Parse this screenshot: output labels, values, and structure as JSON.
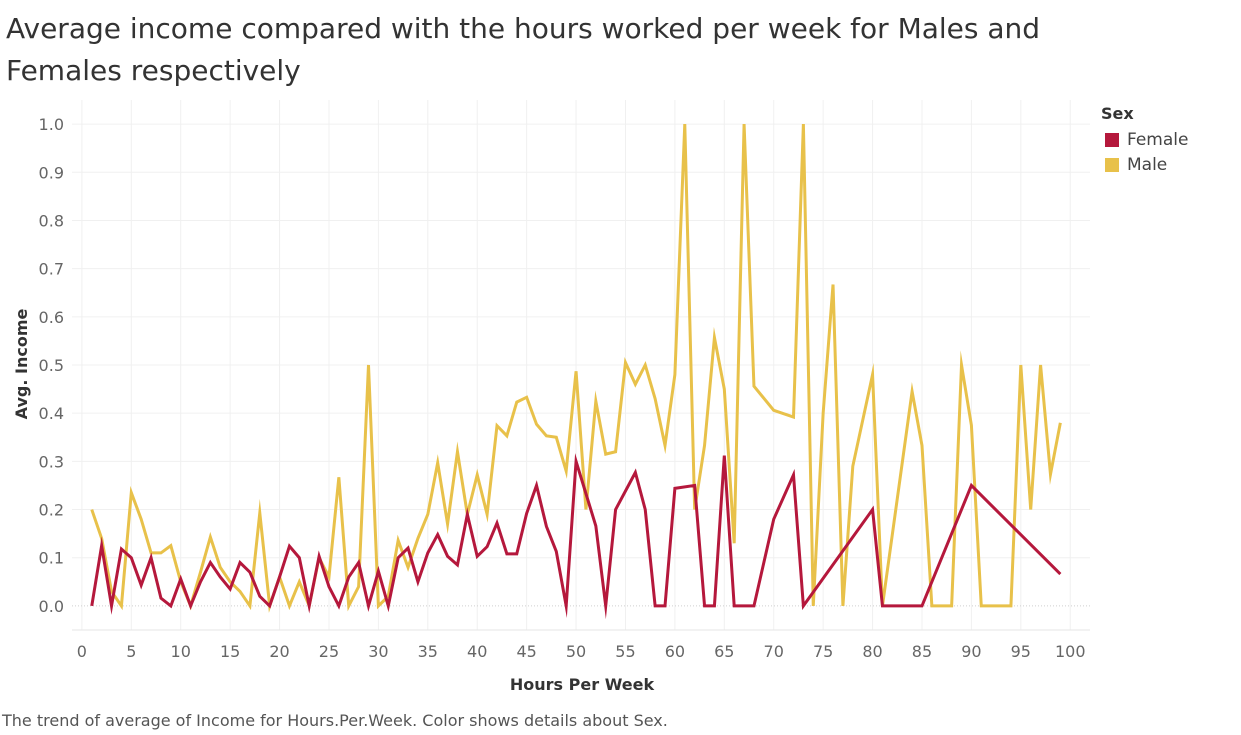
{
  "title": "Average income compared with the hours worked per week for Males and Females respectively",
  "caption": "The trend of average of Income for Hours.Per.Week.  Color shows details about Sex.",
  "legend": {
    "title": "Sex",
    "items": [
      {
        "label": "Female",
        "color": "#b5183c"
      },
      {
        "label": "Male",
        "color": "#e8c14a"
      }
    ]
  },
  "chart_data": {
    "type": "line",
    "title": "Average income compared with the hours worked per week for Males and Females respectively",
    "xlabel": "Hours Per Week",
    "ylabel": "Avg. Income",
    "xlim": [
      -1,
      102
    ],
    "ylim": [
      -0.05,
      1.05
    ],
    "x_ticks": [
      0,
      5,
      10,
      15,
      20,
      25,
      30,
      35,
      40,
      45,
      50,
      55,
      60,
      65,
      70,
      75,
      80,
      85,
      90,
      95,
      100
    ],
    "y_ticks": [
      0.0,
      0.1,
      0.2,
      0.3,
      0.4,
      0.5,
      0.6,
      0.7,
      0.8,
      0.9,
      1.0
    ],
    "grid": true,
    "legend_position": "top-right",
    "series": [
      {
        "name": "Male",
        "color": "#e8c14a",
        "points": [
          [
            1,
            0.2
          ],
          [
            2,
            0.14
          ],
          [
            3,
            0.03
          ],
          [
            4,
            0.0
          ],
          [
            5,
            0.235
          ],
          [
            6,
            0.18
          ],
          [
            7,
            0.11
          ],
          [
            8,
            0.11
          ],
          [
            9,
            0.125
          ],
          [
            10,
            0.05
          ],
          [
            11,
            0.0
          ],
          [
            12,
            0.07
          ],
          [
            13,
            0.143
          ],
          [
            14,
            0.08
          ],
          [
            15,
            0.05
          ],
          [
            16,
            0.03
          ],
          [
            17,
            0.0
          ],
          [
            18,
            0.193
          ],
          [
            19,
            0.0
          ],
          [
            20,
            0.06
          ],
          [
            21,
            0.0
          ],
          [
            22,
            0.05
          ],
          [
            23,
            0.0
          ],
          [
            24,
            0.1
          ],
          [
            25,
            0.06
          ],
          [
            26,
            0.267
          ],
          [
            27,
            0.0
          ],
          [
            28,
            0.04
          ],
          [
            29,
            0.5
          ],
          [
            30,
            0.0
          ],
          [
            31,
            0.02
          ],
          [
            32,
            0.136
          ],
          [
            33,
            0.08
          ],
          [
            34,
            0.14
          ],
          [
            35,
            0.19
          ],
          [
            36,
            0.297
          ],
          [
            37,
            0.17
          ],
          [
            38,
            0.32
          ],
          [
            39,
            0.19
          ],
          [
            40,
            0.272
          ],
          [
            41,
            0.19
          ],
          [
            42,
            0.374
          ],
          [
            43,
            0.353
          ],
          [
            44,
            0.423
          ],
          [
            45,
            0.433
          ],
          [
            46,
            0.377
          ],
          [
            47,
            0.353
          ],
          [
            48,
            0.35
          ],
          [
            49,
            0.28
          ],
          [
            50,
            0.487
          ],
          [
            51,
            0.2
          ],
          [
            52,
            0.425
          ],
          [
            53,
            0.315
          ],
          [
            54,
            0.32
          ],
          [
            55,
            0.505
          ],
          [
            56,
            0.46
          ],
          [
            57,
            0.5
          ],
          [
            58,
            0.43
          ],
          [
            59,
            0.333
          ],
          [
            60,
            0.48
          ],
          [
            61,
            1.0
          ],
          [
            62,
            0.2
          ],
          [
            63,
            0.333
          ],
          [
            64,
            0.557
          ],
          [
            65,
            0.45
          ],
          [
            66,
            0.13
          ],
          [
            67,
            1.0
          ],
          [
            68,
            0.456
          ],
          [
            70,
            0.406
          ],
          [
            72,
            0.392
          ],
          [
            73,
            1.0
          ],
          [
            74,
            0.0
          ],
          [
            75,
            0.4
          ],
          [
            76,
            0.667
          ],
          [
            77,
            0.0
          ],
          [
            78,
            0.29
          ],
          [
            80,
            0.48
          ],
          [
            81,
            0.0
          ],
          [
            84,
            0.445
          ],
          [
            85,
            0.333
          ],
          [
            86,
            0.0
          ],
          [
            88,
            0.0
          ],
          [
            89,
            0.5
          ],
          [
            90,
            0.375
          ],
          [
            91,
            0.0
          ],
          [
            94,
            0.0
          ],
          [
            95,
            0.5
          ],
          [
            96,
            0.2
          ],
          [
            97,
            0.5
          ],
          [
            98,
            0.273
          ],
          [
            99,
            0.38
          ]
        ]
      },
      {
        "name": "Female",
        "color": "#b5183c",
        "points": [
          [
            1,
            0.0
          ],
          [
            2,
            0.125
          ],
          [
            3,
            0.0
          ],
          [
            4,
            0.118
          ],
          [
            5,
            0.1
          ],
          [
            6,
            0.043
          ],
          [
            7,
            0.1
          ],
          [
            8,
            0.016
          ],
          [
            9,
            0.0
          ],
          [
            10,
            0.056
          ],
          [
            11,
            0.0
          ],
          [
            12,
            0.05
          ],
          [
            13,
            0.09
          ],
          [
            14,
            0.06
          ],
          [
            15,
            0.035
          ],
          [
            16,
            0.09
          ],
          [
            17,
            0.07
          ],
          [
            18,
            0.02
          ],
          [
            19,
            0.0
          ],
          [
            20,
            0.06
          ],
          [
            21,
            0.124
          ],
          [
            22,
            0.1
          ],
          [
            23,
            0.0
          ],
          [
            24,
            0.103
          ],
          [
            25,
            0.04
          ],
          [
            26,
            0.0
          ],
          [
            27,
            0.06
          ],
          [
            28,
            0.09
          ],
          [
            29,
            0.0
          ],
          [
            30,
            0.072
          ],
          [
            31,
            0.0
          ],
          [
            32,
            0.1
          ],
          [
            33,
            0.12
          ],
          [
            34,
            0.05
          ],
          [
            35,
            0.11
          ],
          [
            36,
            0.148
          ],
          [
            37,
            0.103
          ],
          [
            38,
            0.085
          ],
          [
            39,
            0.19
          ],
          [
            40,
            0.103
          ],
          [
            41,
            0.123
          ],
          [
            42,
            0.172
          ],
          [
            43,
            0.108
          ],
          [
            44,
            0.108
          ],
          [
            45,
            0.192
          ],
          [
            46,
            0.25
          ],
          [
            47,
            0.165
          ],
          [
            48,
            0.113
          ],
          [
            49,
            0.0
          ],
          [
            50,
            0.3
          ],
          [
            52,
            0.166
          ],
          [
            53,
            0.0
          ],
          [
            54,
            0.2
          ],
          [
            56,
            0.277
          ],
          [
            57,
            0.2
          ],
          [
            58,
            0.0
          ],
          [
            59,
            0.0
          ],
          [
            60,
            0.244
          ],
          [
            62,
            0.25
          ],
          [
            63,
            0.0
          ],
          [
            64,
            0.0
          ],
          [
            65,
            0.312
          ],
          [
            66,
            0.0
          ],
          [
            68,
            0.0
          ],
          [
            70,
            0.18
          ],
          [
            72,
            0.272
          ],
          [
            73,
            0.0
          ],
          [
            80,
            0.2
          ],
          [
            81,
            0.0
          ],
          [
            85,
            0.0
          ],
          [
            90,
            0.25
          ],
          [
            99,
            0.066
          ]
        ]
      }
    ]
  }
}
